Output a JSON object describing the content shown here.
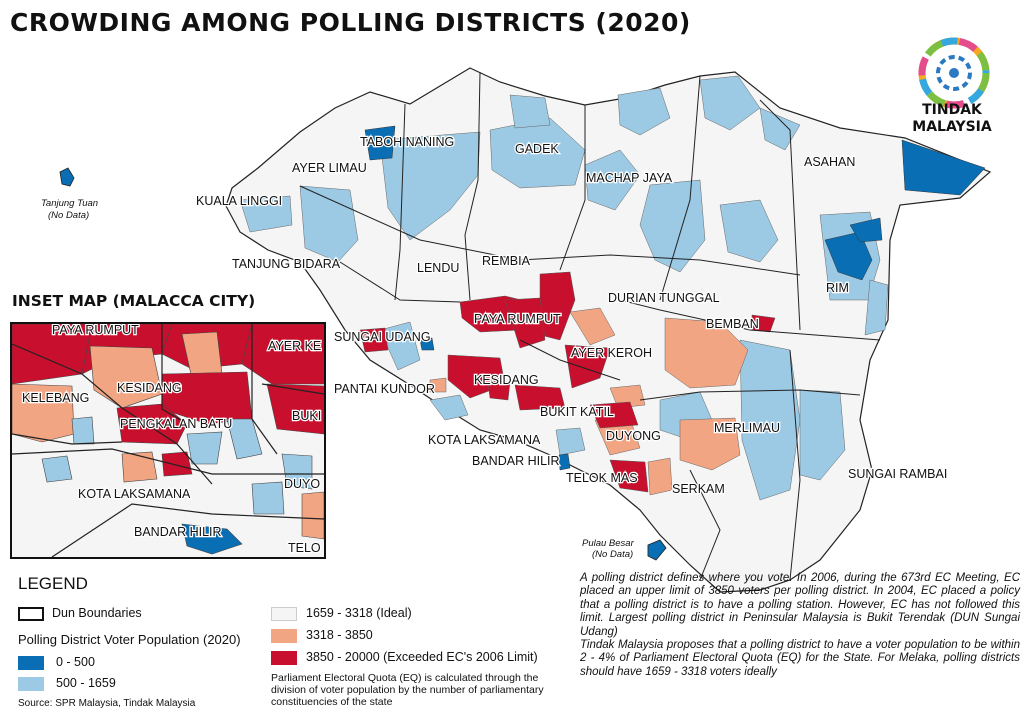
{
  "title": "CROWDING AMONG POLLING DISTRICTS (2020)",
  "logo": {
    "line1": "TINDAK",
    "line2": "MALAYSIA",
    "icon": "tindak-malaysia-logo-icon"
  },
  "colors": {
    "very_low": "#0a6eb4",
    "low": "#9ccae4",
    "ideal": "#f5f5f5",
    "high": "#f2a582",
    "exceeded": "#c8102e",
    "boundary": "#222222"
  },
  "map_labels": {
    "taboh_naning": "TABOH NANING",
    "ayer_limau": "AYER LIMAU",
    "gadek": "GADEK",
    "asahan": "ASAHAN",
    "machap_jaya": "MACHAP JAYA",
    "kuala_linggi": "KUALA LINGGI",
    "tanjung_bidara": "TANJUNG BIDARA",
    "lendu": "LENDU",
    "rembia": "REMBIA",
    "rim": "RIM",
    "durian_tunggal": "DURIAN TUNGGAL",
    "sungai_udang": "SUNGAI UDANG",
    "paya_rumput": "PAYA RUMPUT",
    "bemban": "BEMBAN",
    "ayer_keroh": "AYER KEROH",
    "pantai_kundor": "PANTAI KUNDOR",
    "kesidang": "KESIDANG",
    "bukit_katil": "BUKIT KATIL",
    "kota_laksamana": "KOTA LAKSAMANA",
    "duyong": "DUYONG",
    "merlimau": "MERLIMAU",
    "bandar_hilir": "BANDAR HILIR",
    "sungai_rambai": "SUNGAI RAMBAI",
    "telok_mas": "TELOK MAS",
    "serkam": "SERKAM"
  },
  "islands": {
    "tanjung_tuan": "Tanjung Tuan",
    "tanjung_tuan_note": "(No Data)",
    "pulau_besar": "Pulau Besar",
    "pulau_besar_note": "(No Data)"
  },
  "inset": {
    "title": "INSET MAP (MALACCA CITY)",
    "labels": {
      "paya_rumput": "PAYA RUMPUT",
      "ayer_keroh": "AYER KE",
      "kesidang": "KESIDANG",
      "kelebang": "KELEBANG",
      "pengkalan_batu": "PENGKALAN BATU",
      "bukit_katil": "BUKI",
      "duyong": "DUYO",
      "kota_laksamana": "KOTA LAKSAMANA",
      "bandar_hilir": "BANDAR HILIR",
      "telok_mas": "TELO"
    }
  },
  "legend": {
    "title": "LEGEND",
    "dun_boundaries": "Dun Boundaries",
    "population_heading": "Polling District Voter Population (2020)",
    "classes": {
      "c1": "0 - 500",
      "c2": "500 - 1659",
      "c3": "1659 - 3318 (Ideal)",
      "c4": "3318 - 3850",
      "c5": "3850 - 20000 (Exceeded EC's 2006 Limit)"
    }
  },
  "eq_note": "Parliament Electoral Quota (EQ) is calculated through the division of voter population by the number of parliamentary constituencies of the state",
  "source": "Source: SPR Malaysia, Tindak Malaysia",
  "notes": {
    "p1": "A polling district defines where you vote. In 2006, during the 673rd EC Meeting, EC placed an upper limit of 3850 voters per polling district. In 2004, EC placed a policy that a polling district is to have a polling station. However, EC has not followed this limit. Largest polling district in Peninsular Malaysia is Bukit Terendak (DUN Sungai Udang)",
    "p2": "Tindak Malaysia proposes that a polling district to have a voter population to be within 2 - 4% of Parliament Electoral Quota (EQ) for the State. For Melaka, polling districts should have 1659 - 3318 voters ideally"
  }
}
